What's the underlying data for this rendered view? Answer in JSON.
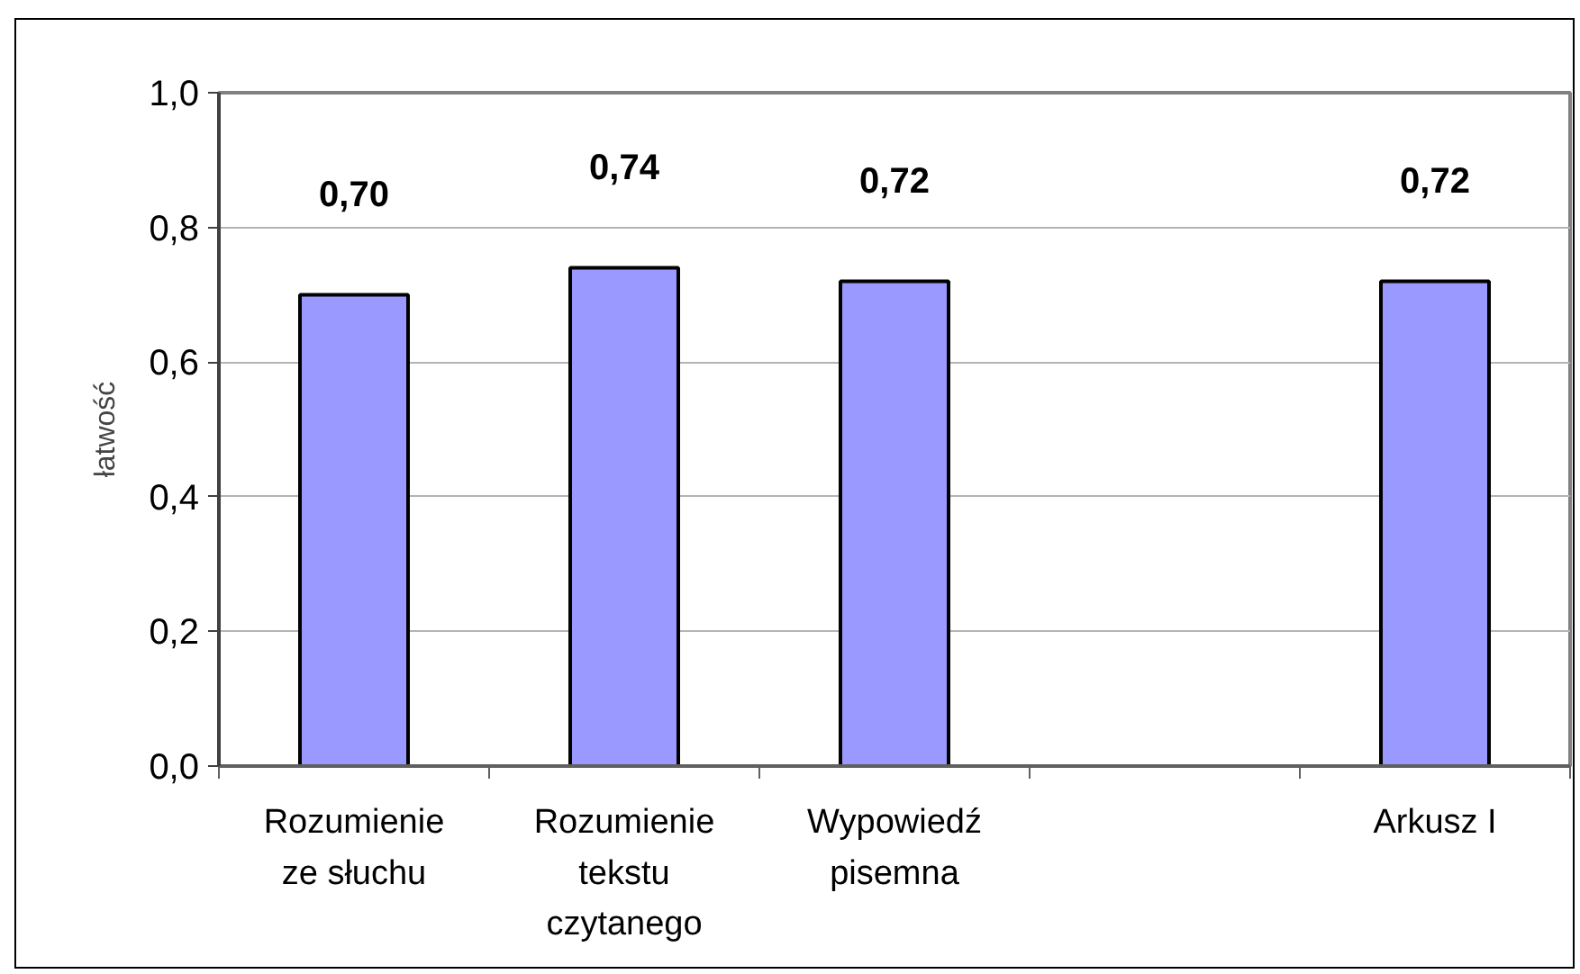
{
  "chart_data": {
    "type": "bar",
    "categories": [
      "Rozumienie ze słuchu",
      "Rozumienie tekstu czytanego",
      "Wypowiedź pisemna",
      null,
      "Arkusz I"
    ],
    "values": [
      0.7,
      0.74,
      0.72,
      null,
      0.72
    ],
    "color": "#9999ff",
    "value_labels": [
      "0,70",
      "0,74",
      "0,72",
      null,
      "0,72"
    ],
    "ylabel": "łatwość",
    "ylim": [
      0,
      1
    ],
    "yticks": [
      {
        "value": 0,
        "label": "0,0"
      },
      {
        "value": 0.2,
        "label": "0,2"
      },
      {
        "value": 0.4,
        "label": "0,4"
      },
      {
        "value": 0.6,
        "label": "0,6"
      },
      {
        "value": 0.8,
        "label": "0,8"
      },
      {
        "value": 1,
        "label": "1,0"
      }
    ],
    "grid": "y"
  }
}
